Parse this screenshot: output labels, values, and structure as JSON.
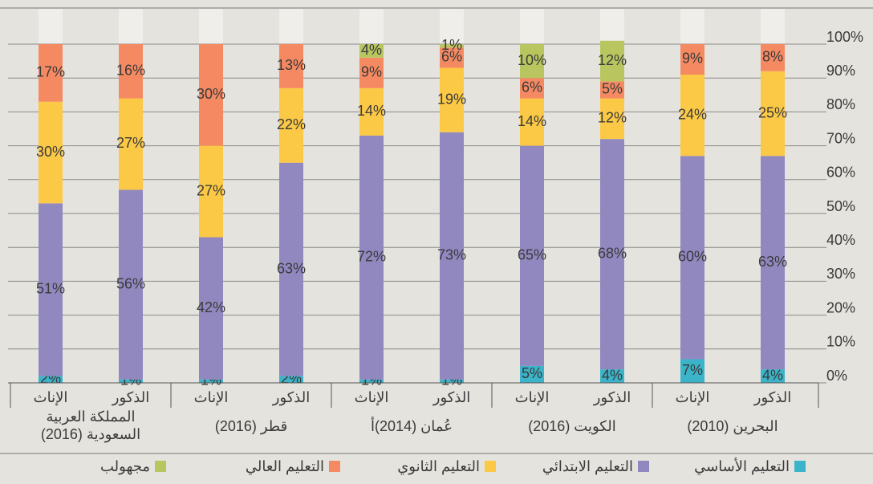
{
  "chart_data": {
    "type": "stacked-bar",
    "categories": [
      "الإناث",
      "الذكور",
      "الإناث",
      "الذكور",
      "الإناث",
      "الذكور",
      "الإناث",
      "الذكور",
      "الإناث",
      "الذكور"
    ],
    "groups": [
      "المملكة العربية السعودية (2016)",
      "قطر (2016)",
      "عُمان (2014)أ",
      "الكويت (2016)",
      "البحرين (2010)"
    ],
    "series": [
      {
        "name": "التعليم الأساسي",
        "color": "#3bb3c8",
        "values": [
          2,
          1,
          1,
          2,
          1,
          1,
          5,
          4,
          7,
          4
        ],
        "value_labels": [
          "2%",
          "1%",
          "1%",
          "2%",
          "1%",
          "1%",
          "5%",
          "4%",
          "7%",
          "4%"
        ]
      },
      {
        "name": "التعليم الابتدائي",
        "color": "#9188c0",
        "values": [
          51,
          56,
          42,
          63,
          72,
          73,
          65,
          68,
          60,
          63
        ],
        "value_labels": [
          "51%",
          "56%",
          "42%",
          "63%",
          "72%",
          "73%",
          "65%",
          "68%",
          "60%",
          "63%"
        ]
      },
      {
        "name": "التعليم الثانوي",
        "color": "#fcc946",
        "values": [
          30,
          27,
          27,
          22,
          14,
          19,
          14,
          12,
          24,
          25
        ],
        "value_labels": [
          "30%",
          "27%",
          "27%",
          "22%",
          "14%",
          "19%",
          "14%",
          "12%",
          "24%",
          "25%"
        ]
      },
      {
        "name": "التعليم العالي",
        "color": "#f58a62",
        "values": [
          17,
          16,
          30,
          13,
          9,
          6,
          6,
          5,
          9,
          8
        ],
        "value_labels": [
          "17%",
          "16%",
          "30%",
          "13%",
          "9%",
          "6%",
          "6%",
          "5%",
          "9%",
          "8%"
        ]
      },
      {
        "name": "مجهولب",
        "color": "#b9c660",
        "values": [
          null,
          null,
          null,
          null,
          4,
          1,
          10,
          12,
          null,
          null
        ],
        "value_labels": [
          null,
          null,
          null,
          null,
          "4%",
          "1%",
          "10%",
          "12%",
          null,
          null
        ]
      }
    ],
    "ylim": [
      0,
      100
    ],
    "yticks": [
      {
        "value": 0,
        "label": "0%"
      },
      {
        "value": 10,
        "label": "10%"
      },
      {
        "value": 20,
        "label": "20%"
      },
      {
        "value": 30,
        "label": "30%"
      },
      {
        "value": 40,
        "label": "40%"
      },
      {
        "value": 50,
        "label": "50%"
      },
      {
        "value": 60,
        "label": "60%"
      },
      {
        "value": 70,
        "label": "70%"
      },
      {
        "value": 80,
        "label": "80%"
      },
      {
        "value": 90,
        "label": "90%"
      },
      {
        "value": 100,
        "label": "100%"
      }
    ],
    "grid": true
  }
}
